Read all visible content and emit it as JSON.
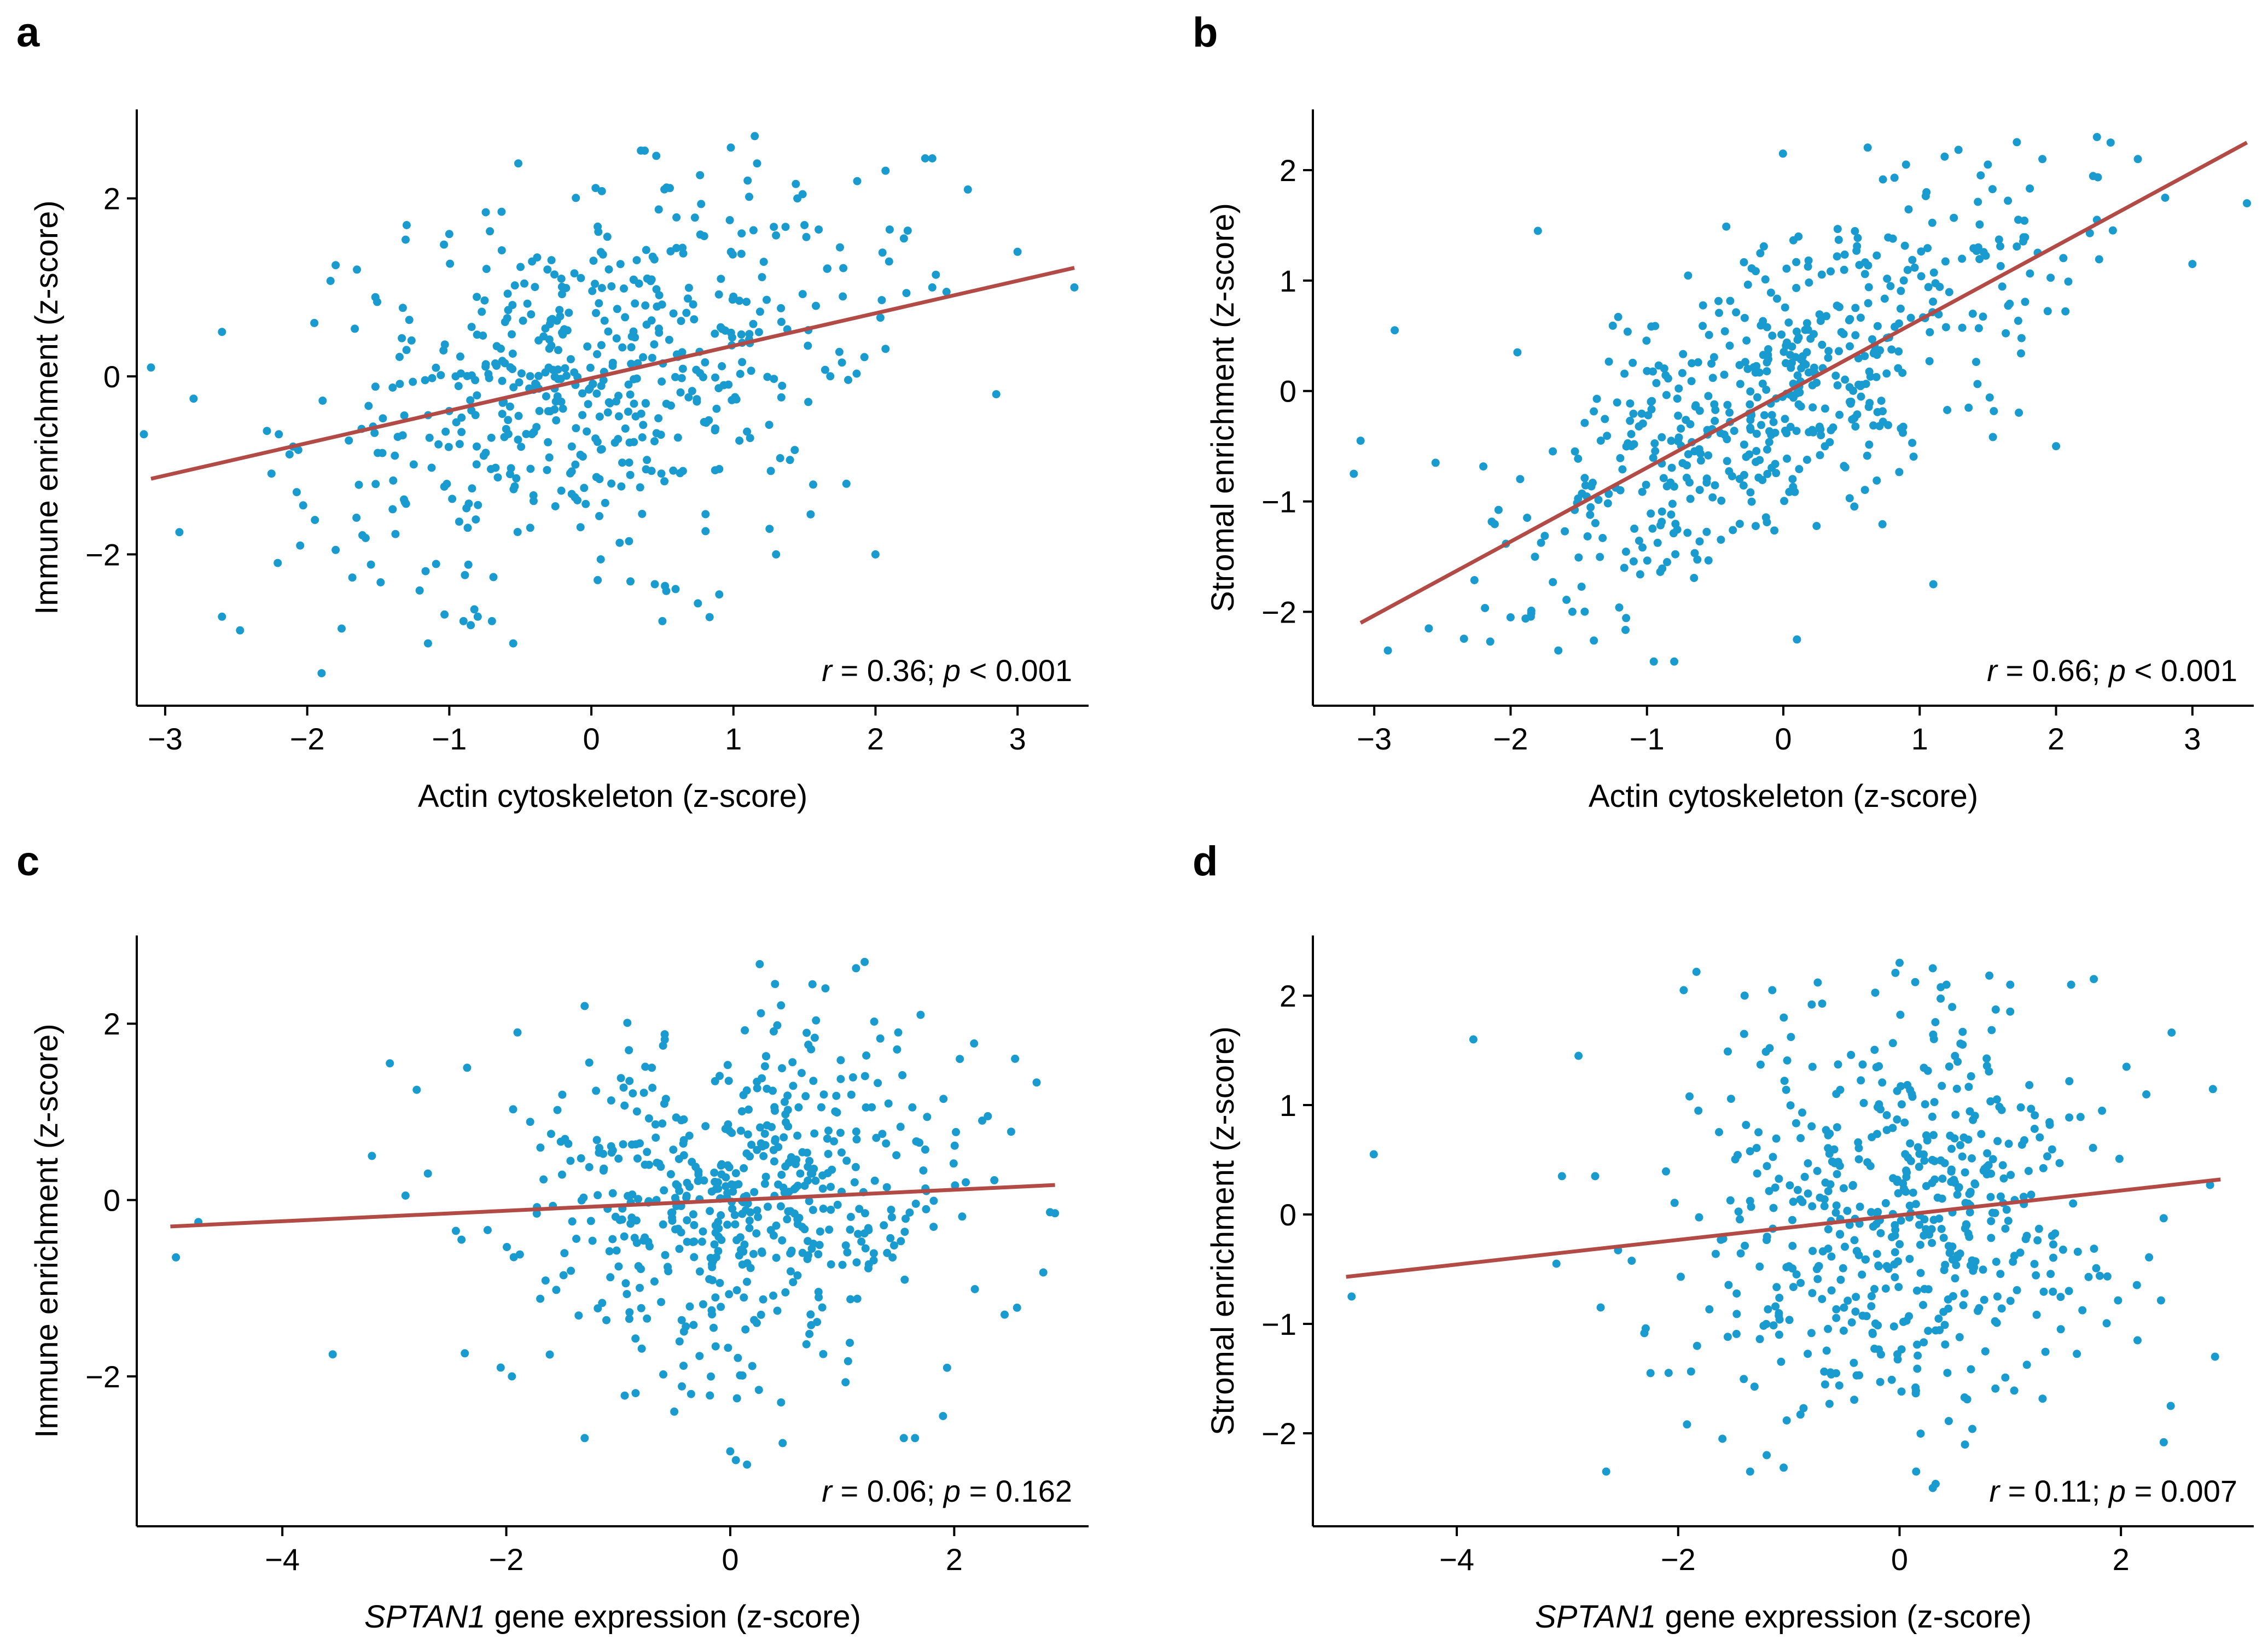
{
  "colors": {
    "points": "#1a9bd0",
    "fit_line": "#b24a46",
    "axis": "#000000"
  },
  "chart_data": [
    {
      "panel": "a",
      "type": "scatter",
      "xlabel": "Actin cytoskeleton (z-score)",
      "ylabel": "Immune enrichment (z-score)",
      "xlim": [
        -3.2,
        3.5
      ],
      "ylim": [
        -3.7,
        3.0
      ],
      "xticks": [
        -3,
        -2,
        -1,
        0,
        1,
        2,
        3
      ],
      "xtick_labels": [
        "−3",
        "−2",
        "−1",
        "0",
        "1",
        "2",
        "3"
      ],
      "yticks": [
        -2,
        0,
        2
      ],
      "ytick_labels": [
        "−2",
        "0",
        "2"
      ],
      "fit": {
        "x": [
          -3.1,
          3.4
        ],
        "y": [
          -1.15,
          1.22
        ]
      },
      "stat": {
        "r_label": "r",
        "r_text": " = 0.36; ",
        "p_label": "p",
        "p_text": " < 0.001"
      },
      "n_points": 580,
      "points": [
        [
          -3.1,
          0.1
        ],
        [
          -3.15,
          -0.65
        ],
        [
          -2.9,
          -1.75
        ],
        [
          -2.8,
          -0.25
        ],
        [
          -2.6,
          0.5
        ],
        [
          -2.6,
          -2.7
        ],
        [
          -2.2,
          -0.65
        ],
        [
          -2.05,
          -1.9
        ],
        [
          -1.8,
          -1.95
        ],
        [
          -1.95,
          0.6
        ],
        [
          -1.8,
          1.25
        ],
        [
          -1.65,
          1.2
        ],
        [
          -1.3,
          1.7
        ],
        [
          -1.0,
          1.6
        ],
        [
          -1.15,
          -3.0
        ],
        [
          -0.9,
          -2.75
        ],
        [
          -0.7,
          -2.75
        ],
        [
          -0.55,
          -3.0
        ],
        [
          -0.8,
          -2.7
        ],
        [
          0.5,
          -2.75
        ],
        [
          0.75,
          -2.55
        ],
        [
          0.9,
          -2.45
        ],
        [
          1.15,
          2.7
        ],
        [
          1.1,
          2.2
        ],
        [
          1.45,
          2.0
        ],
        [
          1.5,
          1.7
        ],
        [
          1.6,
          1.65
        ],
        [
          1.75,
          1.45
        ],
        [
          2.1,
          1.65
        ],
        [
          2.2,
          1.55
        ],
        [
          2.35,
          2.45
        ],
        [
          2.4,
          2.45
        ],
        [
          2.65,
          2.1
        ],
        [
          2.85,
          -0.2
        ],
        [
          3.0,
          1.4
        ],
        [
          3.4,
          1.0
        ],
        [
          2.0,
          -2.0
        ],
        [
          1.3,
          -2.0
        ],
        [
          2.4,
          1.0
        ],
        [
          2.5,
          0.95
        ]
      ]
    },
    {
      "panel": "b",
      "type": "scatter",
      "xlabel": "Actin cytoskeleton (z-score)",
      "ylabel": "Stromal enrichment (z-score)",
      "xlim": [
        -3.45,
        3.45
      ],
      "ylim": [
        -2.85,
        2.55
      ],
      "xticks": [
        -3,
        -2,
        -1,
        0,
        1,
        2,
        3
      ],
      "xtick_labels": [
        "−3",
        "−2",
        "−1",
        "0",
        "1",
        "2",
        "3"
      ],
      "yticks": [
        -2,
        -1,
        0,
        1,
        2
      ],
      "ytick_labels": [
        "−2",
        "−1",
        "0",
        "1",
        "2"
      ],
      "fit": {
        "x": [
          -3.1,
          3.4
        ],
        "y": [
          -2.1,
          2.25
        ]
      },
      "stat": {
        "r_label": "r",
        "r_text": " = 0.66; ",
        "p_label": "p",
        "p_text": " < 0.001"
      },
      "n_points": 580,
      "points": [
        [
          -3.1,
          -0.45
        ],
        [
          -3.15,
          -0.75
        ],
        [
          -2.85,
          0.55
        ],
        [
          -2.9,
          -2.35
        ],
        [
          -2.6,
          -2.15
        ],
        [
          -2.55,
          -0.65
        ],
        [
          -1.95,
          0.35
        ],
        [
          -1.8,
          1.45
        ],
        [
          -2.0,
          -2.05
        ],
        [
          -1.65,
          -2.35
        ],
        [
          2.0,
          -0.5
        ],
        [
          2.3,
          2.3
        ],
        [
          2.4,
          2.25
        ],
        [
          2.6,
          2.1
        ],
        [
          2.8,
          1.75
        ],
        [
          3.0,
          1.15
        ],
        [
          3.4,
          1.7
        ],
        [
          1.9,
          2.1
        ],
        [
          1.5,
          2.05
        ],
        [
          2.3,
          1.55
        ],
        [
          1.1,
          -1.75
        ],
        [
          0.1,
          -2.25
        ],
        [
          -0.8,
          -2.45
        ],
        [
          -0.95,
          -2.45
        ],
        [
          0.9,
          2.05
        ],
        [
          1.05,
          1.8
        ]
      ]
    },
    {
      "panel": "c",
      "type": "scatter",
      "xlabel": "SPTAN1 gene expression (z-score)",
      "xlabel_italic": "SPTAN1",
      "xlabel_rest": " gene expression (z-score)",
      "ylabel": "Immune enrichment (z-score)",
      "xlim": [
        -5.3,
        3.2
      ],
      "ylim": [
        -3.7,
        3.0
      ],
      "xticks": [
        -4,
        -2,
        0,
        2
      ],
      "xtick_labels": [
        "−4",
        "−2",
        "0",
        "2"
      ],
      "yticks": [
        -2,
        0,
        2
      ],
      "ytick_labels": [
        "−2",
        "0",
        "2"
      ],
      "fit": {
        "x": [
          -5.0,
          2.9
        ],
        "y": [
          -0.3,
          0.17
        ]
      },
      "stat": {
        "r_label": "r",
        "r_text": " = 0.06; ",
        "p_label": "p",
        "p_text": " = 0.162"
      },
      "n_points": 580,
      "points": [
        [
          -4.95,
          -0.65
        ],
        [
          -4.75,
          -0.25
        ],
        [
          -3.55,
          -1.75
        ],
        [
          -3.2,
          0.5
        ],
        [
          -2.9,
          0.05
        ],
        [
          -2.8,
          1.25
        ],
        [
          -2.7,
          0.3
        ],
        [
          -2.45,
          -0.35
        ],
        [
          -2.4,
          -0.45
        ],
        [
          -2.35,
          1.5
        ],
        [
          -2.05,
          -1.9
        ],
        [
          -1.95,
          -2.0
        ],
        [
          -1.9,
          1.9
        ],
        [
          -1.6,
          0.75
        ],
        [
          -1.3,
          2.2
        ],
        [
          -1.3,
          -2.7
        ],
        [
          -0.9,
          1.35
        ],
        [
          -0.7,
          1.5
        ],
        [
          -0.6,
          1.75
        ],
        [
          -0.5,
          -2.4
        ],
        [
          -0.35,
          -2.2
        ],
        [
          0.0,
          -2.85
        ],
        [
          0.05,
          -2.95
        ],
        [
          0.15,
          -3.0
        ],
        [
          0.4,
          2.45
        ],
        [
          0.85,
          2.4
        ],
        [
          1.2,
          2.7
        ],
        [
          1.5,
          1.9
        ],
        [
          1.55,
          -2.7
        ],
        [
          1.65,
          -2.7
        ],
        [
          1.7,
          2.1
        ],
        [
          1.9,
          -2.45
        ],
        [
          2.05,
          1.6
        ],
        [
          2.25,
          0.9
        ],
        [
          2.3,
          0.95
        ],
        [
          2.45,
          -1.3
        ],
        [
          2.9,
          -0.15
        ]
      ]
    },
    {
      "panel": "d",
      "type": "scatter",
      "xlabel": "SPTAN1 gene expression (z-score)",
      "xlabel_italic": "SPTAN1",
      "xlabel_rest": " gene expression (z-score)",
      "ylabel": "Stromal enrichment (z-score)",
      "xlim": [
        -5.3,
        3.2
      ],
      "ylim": [
        -2.85,
        2.55
      ],
      "xticks": [
        -4,
        -2,
        0,
        2
      ],
      "xtick_labels": [
        "−4",
        "−2",
        "0",
        "2"
      ],
      "yticks": [
        -2,
        -1,
        0,
        1,
        2
      ],
      "ytick_labels": [
        "−2",
        "−1",
        "0",
        "1",
        "2"
      ],
      "fit": {
        "x": [
          -5.0,
          2.9
        ],
        "y": [
          -0.57,
          0.32
        ]
      },
      "stat": {
        "r_label": "r",
        "r_text": " = 0.11; ",
        "p_label": "p",
        "p_text": " = 0.007"
      },
      "n_points": 580,
      "points": [
        [
          -4.95,
          -0.75
        ],
        [
          -4.75,
          0.55
        ],
        [
          -3.85,
          1.6
        ],
        [
          -3.1,
          -0.45
        ],
        [
          -3.05,
          0.35
        ],
        [
          -2.9,
          1.45
        ],
        [
          -2.75,
          0.35
        ],
        [
          -2.7,
          -0.85
        ],
        [
          -2.65,
          -2.35
        ],
        [
          -2.25,
          -1.45
        ],
        [
          -1.95,
          2.05
        ],
        [
          -1.4,
          2.0
        ],
        [
          -1.15,
          2.05
        ],
        [
          -1.35,
          -2.35
        ],
        [
          -1.6,
          -2.05
        ],
        [
          -1.2,
          -2.2
        ],
        [
          0.0,
          2.3
        ],
        [
          0.3,
          2.25
        ],
        [
          1.0,
          2.1
        ],
        [
          1.55,
          2.1
        ],
        [
          2.05,
          1.35
        ],
        [
          2.15,
          -1.15
        ],
        [
          2.85,
          -1.3
        ],
        [
          2.45,
          -1.75
        ],
        [
          0.15,
          -2.35
        ],
        [
          0.3,
          -2.5
        ]
      ]
    }
  ]
}
